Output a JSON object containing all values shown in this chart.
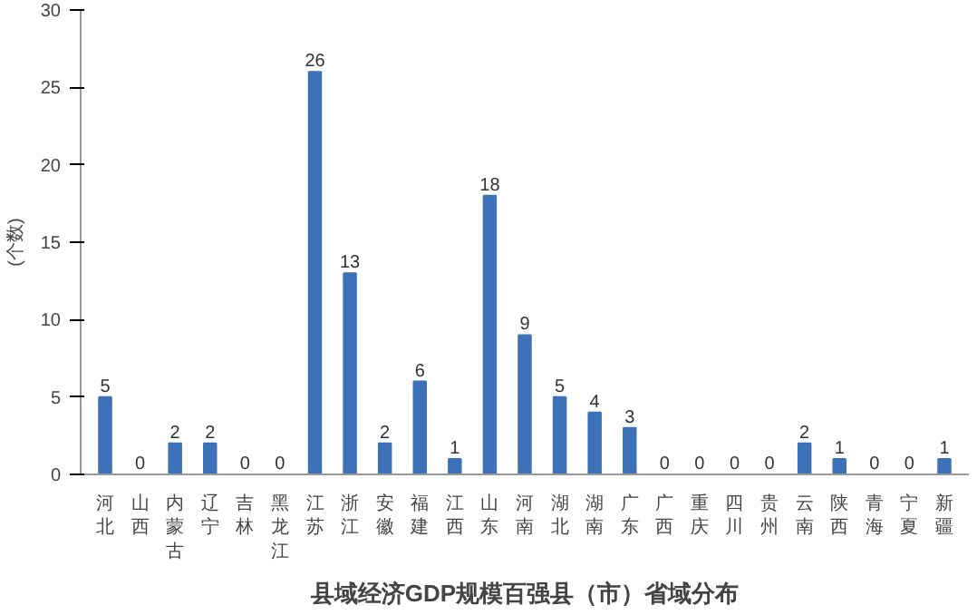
{
  "chart_data": {
    "type": "bar",
    "title": "县域经济GDP规模百强县（市）省域分布",
    "ylabel": "(个数)",
    "categories": [
      "河北",
      "山西",
      "内蒙古",
      "辽宁",
      "吉林",
      "黑龙江",
      "江苏",
      "浙江",
      "安徽",
      "福建",
      "江西",
      "山东",
      "河南",
      "湖北",
      "湖南",
      "广东",
      "广西",
      "重庆",
      "四川",
      "贵州",
      "云南",
      "陕西",
      "青海",
      "宁夏",
      "新疆"
    ],
    "values": [
      5,
      0,
      2,
      2,
      0,
      0,
      26,
      13,
      2,
      6,
      1,
      18,
      9,
      5,
      4,
      3,
      0,
      0,
      0,
      0,
      2,
      1,
      0,
      0,
      1
    ],
    "color": "#3d72b8",
    "ylim": [
      0,
      30
    ],
    "yticks": [
      0,
      5,
      10,
      15,
      20,
      25,
      30
    ],
    "grid": false,
    "data_labels": true
  }
}
